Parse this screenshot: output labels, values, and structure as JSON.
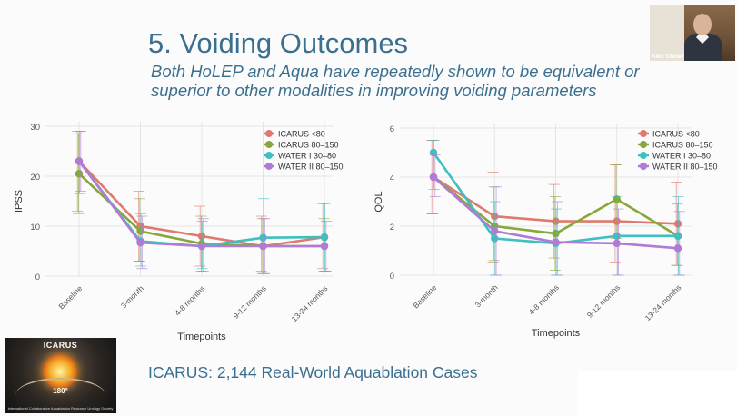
{
  "slide": {
    "title": "5. Voiding Outcomes",
    "subtitle": "Both HoLEP and Aqua have repeatedly shown to be equivalent or superior to other modalities in improving voiding parameters",
    "cases_text": "ICARUS:  2,144 Real-World Aquablation Cases"
  },
  "video": {
    "participant_name": "Alex Glaser"
  },
  "logo": {
    "title": "ICARUS",
    "degree": "180°",
    "subtitle": "International Collaborative Aquablation Research Urology Society"
  },
  "colors": {
    "icarus_lt80": "#e07a6e",
    "icarus_80_150": "#86a83a",
    "water1": "#3fbfc0",
    "water2": "#b07ad6",
    "grid": "#e4e4e4",
    "text": "#3b6f8f"
  },
  "chart_data": [
    {
      "type": "line",
      "id": "ipss",
      "xlabel": "Timepoints",
      "ylabel": "IPSS",
      "ylim": [
        0,
        30
      ],
      "yticks": [
        0,
        10,
        20,
        30
      ],
      "categories": [
        "Baseline",
        "3-month",
        "4-8 months",
        "9-12 months",
        "13-24 months"
      ],
      "series": [
        {
          "name": "ICARUS <80",
          "values": [
            23,
            10,
            8,
            6,
            7.8
          ],
          "err_low": [
            13,
            3,
            2,
            1,
            1.5
          ],
          "err_high": [
            29,
            17,
            14,
            12,
            14.5
          ]
        },
        {
          "name": "ICARUS 80-150",
          "values": [
            20.5,
            9,
            6.5,
            6,
            6
          ],
          "err_low": [
            12.5,
            3,
            1,
            0.5,
            1
          ],
          "err_high": [
            28.5,
            15.5,
            12,
            11.5,
            11.5
          ]
        },
        {
          "name": "WATER I 30-80",
          "values": [
            23,
            7,
            6,
            7.7,
            7.8
          ],
          "err_low": [
            16.5,
            2,
            1.5,
            0.5,
            1
          ],
          "err_high": [
            29,
            12.5,
            11,
            15.5,
            14.5
          ]
        },
        {
          "name": "WATER II 80-150",
          "values": [
            23,
            6.7,
            6,
            6,
            6
          ],
          "err_low": [
            17,
            1.5,
            1,
            0.5,
            1
          ],
          "err_high": [
            29,
            12,
            11.5,
            11.5,
            11
          ]
        }
      ]
    },
    {
      "type": "line",
      "id": "qol",
      "xlabel": "Timepoints",
      "ylabel": "QOL",
      "ylim": [
        0,
        6
      ],
      "yticks": [
        0,
        2,
        4,
        6
      ],
      "categories": [
        "Baseline",
        "3-month",
        "4-8 months",
        "9-12 months",
        "13-24 months"
      ],
      "series": [
        {
          "name": "ICARUS <80",
          "values": [
            4,
            2.4,
            2.2,
            2.2,
            2.1
          ],
          "err_low": [
            2.5,
            0.5,
            0.7,
            0.5,
            0.4
          ],
          "err_high": [
            5.5,
            4.2,
            3.7,
            4.5,
            3.8
          ]
        },
        {
          "name": "ICARUS 80-150",
          "values": [
            4,
            2,
            1.7,
            3.1,
            1.6
          ],
          "err_low": [
            2.5,
            0.6,
            0.2,
            1.5,
            0.4
          ],
          "err_high": [
            5.5,
            3.6,
            3.2,
            4.5,
            2.9
          ]
        },
        {
          "name": "WATER I 30-80",
          "values": [
            5,
            1.5,
            1.3,
            1.6,
            1.6
          ],
          "err_low": [
            3.5,
            0,
            0,
            0,
            0
          ],
          "err_high": [
            5.5,
            3,
            2.7,
            3.2,
            3.2
          ]
        },
        {
          "name": "WATER II 80-150",
          "values": [
            4,
            1.8,
            1.35,
            1.3,
            1.1
          ],
          "err_low": [
            3.2,
            0,
            0,
            0,
            0
          ],
          "err_high": [
            4.9,
            3.6,
            3,
            2.7,
            2.6
          ]
        }
      ]
    }
  ]
}
